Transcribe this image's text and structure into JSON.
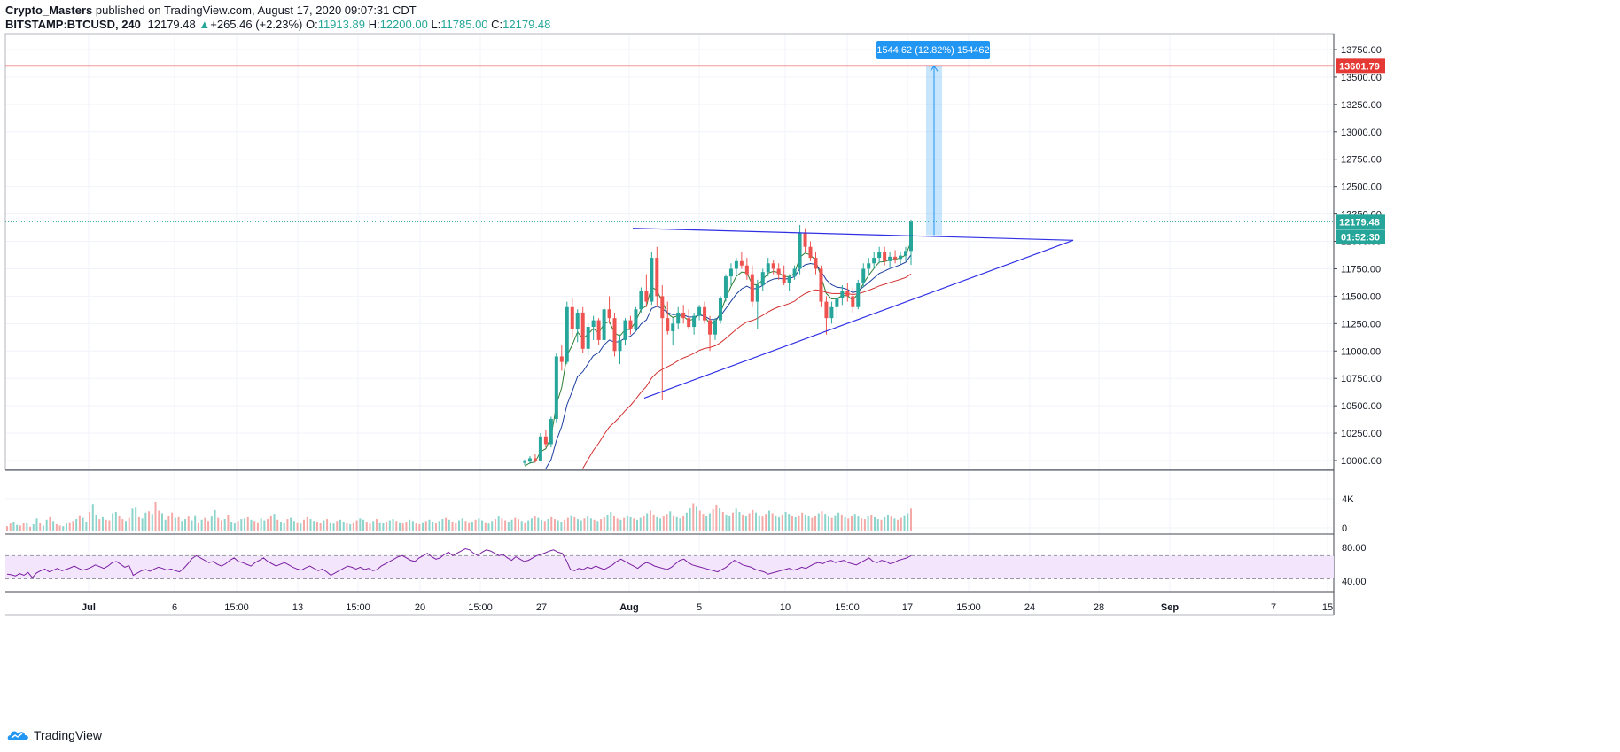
{
  "header": {
    "author": "Crypto_Masters",
    "published_text": "published on TradingView.com, August 17, 2020 09:07:31 CDT",
    "symbol": "BITSTAMP:BTCUSD, 240",
    "last": "12179.48",
    "arrow": "▲",
    "change": "+265.46 (+2.23%)",
    "o_label": "O:",
    "o_value": "11913.89",
    "h_label": "H:",
    "h_value": "12200.00",
    "l_label": "L:",
    "l_value": "11785.00",
    "c_label": "C:",
    "c_value": "12179.48"
  },
  "footer": {
    "brand": "TradingView"
  },
  "colors": {
    "up": "#26a69a",
    "down": "#ef5350",
    "ma_fast": "#2e7d32",
    "ma_mid": "#1a3e9e",
    "ma_slow": "#d32f2f",
    "trendline": "#2f2fe6",
    "resistance": "#e53935",
    "rsi_line": "#7b1fa2",
    "rsi_band": "#f3e5fc",
    "accent": "#2196f3"
  },
  "chart_data": {
    "type": "candlestick",
    "symbol": "BITSTAMP:BTCUSD",
    "interval": "240",
    "price_axis": {
      "ticks": [
        "13750.00",
        "13500.00",
        "13250.00",
        "13000.00",
        "12750.00",
        "12500.00",
        "12250.00",
        "12000.00",
        "11750.00",
        "11500.00",
        "11250.00",
        "11000.00",
        "10750.00",
        "10500.00",
        "10250.00",
        "10000.00"
      ],
      "range": [
        9950,
        13900
      ]
    },
    "time_axis": {
      "labels": [
        "Jul",
        "6",
        "15:00",
        "13",
        "15:00",
        "20",
        "15:00",
        "27",
        "Aug",
        "5",
        "10",
        "15:00",
        "17",
        "15:00",
        "24",
        "28",
        "Sep",
        "7",
        "15"
      ],
      "bold": [
        "Jul",
        "Aug",
        "Sep"
      ]
    },
    "current_price": {
      "value": 12179.48,
      "label": "12179.48",
      "countdown": "01:52:30"
    },
    "resistance_line": {
      "value": 13601.79,
      "label": "13601.79"
    },
    "measure": {
      "label": "1544.62 (12.82%) 154462",
      "from": 12057,
      "to": 13601.79
    },
    "triangle": {
      "upper": [
        [
          "Aug 1",
          12120
        ],
        [
          "Aug 21",
          12010
        ]
      ],
      "lower": [
        [
          "Aug 1",
          10570
        ],
        [
          "Aug 21",
          12010
        ]
      ]
    },
    "volume_axis": {
      "ticks": [
        "4K",
        "0"
      ]
    },
    "rsi_axis": {
      "ticks": [
        "80.00",
        "40.00"
      ],
      "band": [
        30,
        70
      ]
    },
    "price_candles": [
      [
        9980,
        10010,
        9960,
        9990
      ],
      [
        9990,
        10040,
        9970,
        10020
      ],
      [
        10020,
        10060,
        9980,
        10000
      ],
      [
        10000,
        10250,
        9990,
        10220
      ],
      [
        10220,
        10280,
        10120,
        10150
      ],
      [
        10150,
        10400,
        10120,
        10380
      ],
      [
        10380,
        10980,
        10350,
        10950
      ],
      [
        10950,
        11050,
        10820,
        10900
      ],
      [
        10900,
        11450,
        10880,
        11400
      ],
      [
        11400,
        11480,
        11120,
        11200
      ],
      [
        11200,
        11380,
        11080,
        11350
      ],
      [
        11350,
        11400,
        10980,
        11020
      ],
      [
        11020,
        11250,
        10960,
        11220
      ],
      [
        11220,
        11320,
        11100,
        11280
      ],
      [
        11280,
        11300,
        11050,
        11100
      ],
      [
        11100,
        11420,
        11080,
        11380
      ],
      [
        11380,
        11500,
        11250,
        11300
      ],
      [
        11300,
        11350,
        10950,
        11000
      ],
      [
        11000,
        11150,
        10880,
        11100
      ],
      [
        11100,
        11300,
        11050,
        11280
      ],
      [
        11280,
        11320,
        11150,
        11200
      ],
      [
        11200,
        11400,
        11180,
        11380
      ],
      [
        11380,
        11580,
        11350,
        11550
      ],
      [
        11550,
        11700,
        11400,
        11450
      ],
      [
        11450,
        11900,
        11420,
        11850
      ],
      [
        11850,
        11950,
        11400,
        11500
      ],
      [
        11500,
        11600,
        10550,
        11300
      ],
      [
        11300,
        11450,
        11150,
        11180
      ],
      [
        11180,
        11300,
        11050,
        11250
      ],
      [
        11250,
        11400,
        11200,
        11350
      ],
      [
        11350,
        11420,
        11250,
        11300
      ],
      [
        11300,
        11380,
        11200,
        11220
      ],
      [
        11220,
        11350,
        11150,
        11320
      ],
      [
        11320,
        11420,
        11280,
        11400
      ],
      [
        11400,
        11450,
        11250,
        11280
      ],
      [
        11280,
        11320,
        11000,
        11150
      ],
      [
        11150,
        11300,
        11100,
        11280
      ],
      [
        11280,
        11500,
        11250,
        11480
      ],
      [
        11480,
        11700,
        11450,
        11680
      ],
      [
        11680,
        11800,
        11600,
        11750
      ],
      [
        11750,
        11850,
        11700,
        11820
      ],
      [
        11820,
        11900,
        11750,
        11780
      ],
      [
        11780,
        11850,
        11650,
        11700
      ],
      [
        11700,
        11780,
        11400,
        11450
      ],
      [
        11450,
        11650,
        11200,
        11600
      ],
      [
        11600,
        11750,
        11550,
        11720
      ],
      [
        11720,
        11850,
        11680,
        11800
      ],
      [
        11800,
        11830,
        11700,
        11750
      ],
      [
        11750,
        11800,
        11650,
        11700
      ],
      [
        11700,
        11780,
        11600,
        11620
      ],
      [
        11620,
        11700,
        11550,
        11680
      ],
      [
        11680,
        11780,
        11650,
        11750
      ],
      [
        11750,
        12150,
        11700,
        12080
      ],
      [
        12080,
        12120,
        11900,
        11950
      ],
      [
        11950,
        12000,
        11820,
        11850
      ],
      [
        11850,
        11900,
        11700,
        11750
      ],
      [
        11750,
        11780,
        11400,
        11450
      ],
      [
        11450,
        11500,
        11150,
        11300
      ],
      [
        11300,
        11450,
        11250,
        11400
      ],
      [
        11400,
        11500,
        11300,
        11480
      ],
      [
        11480,
        11600,
        11420,
        11550
      ],
      [
        11550,
        11620,
        11450,
        11500
      ],
      [
        11500,
        11580,
        11350,
        11400
      ],
      [
        11400,
        11650,
        11380,
        11620
      ],
      [
        11620,
        11800,
        11580,
        11750
      ],
      [
        11750,
        11850,
        11700,
        11800
      ],
      [
        11800,
        11900,
        11750,
        11850
      ],
      [
        11850,
        11950,
        11800,
        11900
      ],
      [
        11900,
        11950,
        11780,
        11820
      ],
      [
        11820,
        11900,
        11760,
        11860
      ],
      [
        11860,
        11920,
        11800,
        11840
      ],
      [
        11840,
        11900,
        11790,
        11870
      ],
      [
        11870,
        11950,
        11820,
        11913
      ],
      [
        11913,
        12200,
        11785,
        12179
      ]
    ],
    "volume_values": [
      0.8,
      1.2,
      1.5,
      1.0,
      0.9,
      1.3,
      1.4,
      0.7,
      1.1,
      2.0,
      1.3,
      0.9,
      1.8,
      2.2,
      1.6,
      1.1,
      0.9,
      0.8,
      1.2,
      1.4,
      1.6,
      1.9,
      2.5,
      2.1,
      1.5,
      3.0,
      4.2,
      2.6,
      1.9,
      2.2,
      1.8,
      1.7,
      2.8,
      3.0,
      2.4,
      1.9,
      1.6,
      2.1,
      3.5,
      3.8,
      2.2,
      2.0,
      2.9,
      3.1,
      2.7,
      4.5,
      3.2,
      2.8,
      1.8,
      2.4,
      2.9,
      2.1,
      2.2,
      1.6,
      1.9,
      2.3,
      1.7,
      2.5,
      1.4,
      1.8,
      2.1,
      1.6,
      2.3,
      3.3,
      2.1,
      1.7,
      1.9,
      2.6,
      1.5,
      1.3,
      1.6,
      1.9,
      2.0,
      2.2,
      1.8,
      1.6,
      1.4,
      2.0,
      1.7,
      1.9,
      2.4,
      2.7,
      1.8,
      1.5,
      1.3,
      1.9,
      2.1,
      1.6,
      1.4,
      1.2,
      1.8,
      2.2,
      1.9,
      1.6,
      1.5,
      1.3,
      1.7,
      1.9,
      1.4,
      1.2,
      1.6,
      1.8,
      1.5,
      1.3,
      1.1,
      1.4,
      1.7,
      2.0,
      1.8,
      1.5,
      1.2,
      1.6,
      1.9,
      1.4,
      1.3,
      1.5,
      1.7,
      1.9,
      1.6,
      1.4,
      1.2,
      1.5,
      1.8,
      1.6,
      1.3,
      1.1,
      1.4,
      1.6,
      1.8,
      1.5,
      1.3,
      1.6,
      1.9,
      2.1,
      1.8,
      1.5,
      1.3,
      1.7,
      2.0,
      1.6,
      1.4,
      1.5,
      1.8,
      2.0,
      1.7,
      1.4,
      1.2,
      1.6,
      1.9,
      2.3,
      2.0,
      1.7,
      1.5,
      1.8,
      2.1,
      1.9,
      1.6,
      1.4,
      1.7,
      2.0,
      2.4,
      2.1,
      1.8,
      1.6,
      1.9,
      2.2,
      1.9,
      1.7,
      1.5,
      1.8,
      2.1,
      2.5,
      2.2,
      1.9,
      1.7,
      2.0,
      2.3,
      2.0,
      1.8,
      1.6,
      1.9,
      2.2,
      2.6,
      3.0,
      2.4,
      2.0,
      1.8,
      2.1,
      2.5,
      2.2,
      2.0,
      1.8,
      2.1,
      2.4,
      2.8,
      3.2,
      2.6,
      2.2,
      2.0,
      2.3,
      2.7,
      3.1,
      2.5,
      2.2,
      2.0,
      2.4,
      2.9,
      3.6,
      4.3,
      3.9,
      3.2,
      2.7,
      2.4,
      2.8,
      3.4,
      4.1,
      3.6,
      3.0,
      2.6,
      2.4,
      2.9,
      3.5,
      3.0,
      2.6,
      2.4,
      2.8,
      3.3,
      2.9,
      2.5,
      2.3,
      2.7,
      3.2,
      2.8,
      2.4,
      2.2,
      2.6,
      3.0,
      2.7,
      2.4,
      2.2,
      2.5,
      2.9,
      2.6,
      2.3,
      2.1,
      2.4,
      2.8,
      3.1,
      2.7,
      2.3,
      2.1,
      2.5,
      2.9,
      2.6,
      2.2,
      2.0,
      2.4,
      2.7,
      2.3,
      2.0,
      1.9,
      2.3,
      2.6,
      2.2,
      1.9,
      1.8,
      2.2,
      2.6,
      2.3,
      2.0,
      1.8,
      2.1,
      2.5,
      2.8,
      3.5
    ],
    "rsi_values": [
      38,
      37,
      35,
      39,
      36,
      41,
      32,
      40,
      44,
      47,
      42,
      45,
      48,
      44,
      46,
      49,
      52,
      48,
      45,
      47,
      50,
      54,
      51,
      48,
      52,
      58,
      60,
      55,
      50,
      53,
      36,
      40,
      44,
      46,
      43,
      47,
      50,
      48,
      45,
      47,
      44,
      42,
      48,
      56,
      65,
      70,
      66,
      62,
      58,
      60,
      55,
      52,
      56,
      62,
      66,
      60,
      58,
      55,
      52,
      58,
      62,
      66,
      60,
      56,
      52,
      55,
      58,
      54,
      50,
      47,
      45,
      49,
      52,
      48,
      44,
      47,
      42,
      36,
      40,
      44,
      48,
      52,
      50,
      47,
      50,
      46,
      48,
      44,
      46,
      52,
      56,
      60,
      64,
      68,
      70,
      66,
      62,
      60,
      66,
      70,
      74,
      68,
      64,
      66,
      72,
      76,
      70,
      74,
      78,
      82,
      80,
      74,
      70,
      76,
      80,
      78,
      74,
      70,
      72,
      66,
      62,
      68,
      64,
      60,
      62,
      66,
      70,
      72,
      75,
      78,
      80,
      76,
      74,
      62,
      46,
      44,
      48,
      46,
      50,
      48,
      52,
      49,
      46,
      50,
      54,
      60,
      64,
      60,
      56,
      52,
      48,
      54,
      58,
      56,
      52,
      50,
      48,
      46,
      50,
      56,
      62,
      64,
      58,
      54,
      52,
      50,
      48,
      46,
      44,
      42,
      46,
      50,
      56,
      62,
      58,
      54,
      52,
      50,
      46,
      44,
      42,
      38,
      40,
      42,
      44,
      46,
      48,
      45,
      47,
      50,
      48,
      52,
      56,
      58,
      56,
      60,
      62,
      58,
      60,
      62,
      58,
      56,
      54,
      58,
      62,
      66,
      60,
      58,
      62,
      60,
      56,
      58,
      62,
      64,
      66,
      70
    ]
  }
}
